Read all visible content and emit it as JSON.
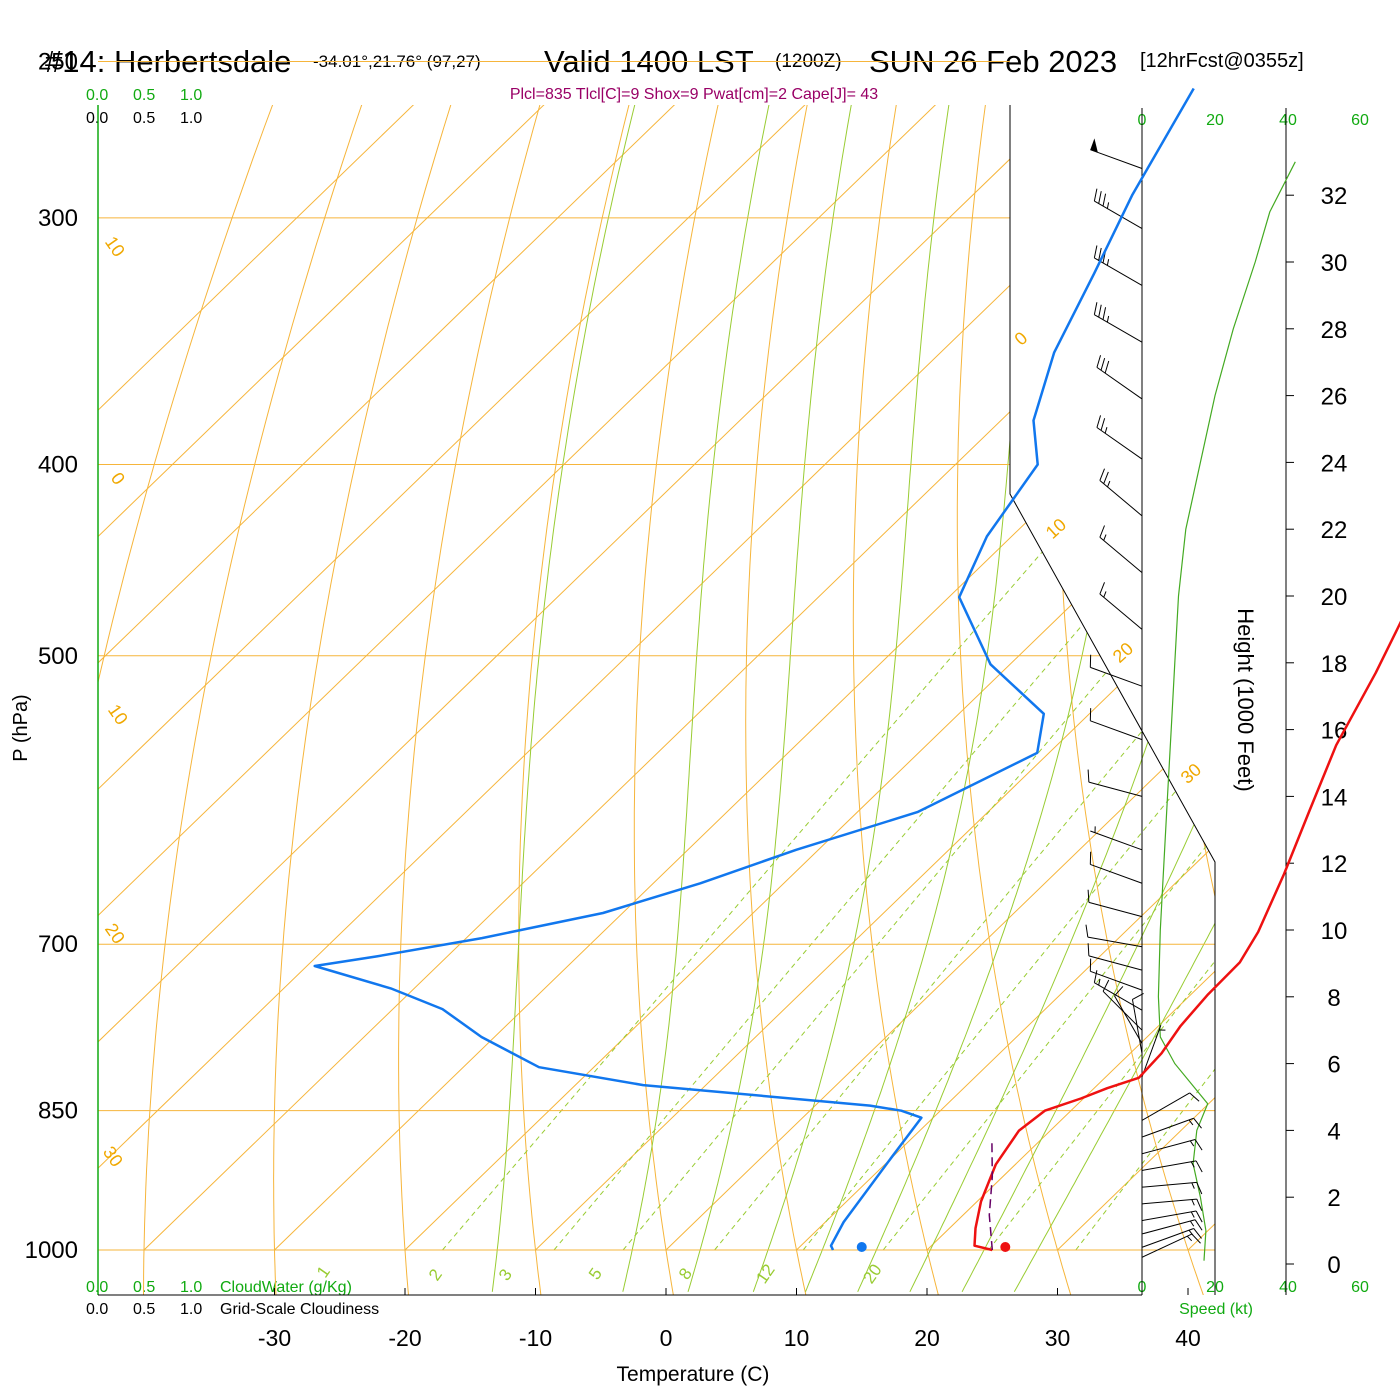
{
  "header": {
    "station": "#14: Herbertsdale",
    "coords": "-34.01°,21.76° (97,27)",
    "valid": "Valid 1400 LST",
    "utc": "(1200Z)",
    "date": "SUN 26 Feb 2023",
    "forecast": "[12hrFcst@0355z]",
    "indices": "Plcl=835 Tlcl[C]=9 Shox=9 Pwat[cm]=2 Cape[J]= 43"
  },
  "scales": {
    "cloudwater_ticks": [
      "0.0",
      "0.5",
      "1.0"
    ],
    "cloudiness_ticks": [
      "0.0",
      "0.5",
      "1.0"
    ],
    "cloudwater_label": "CloudWater (g/Kg)",
    "cloudiness_label": "Grid-Scale Cloudiness",
    "speed_ticks": [
      "0",
      "20",
      "40",
      "60"
    ],
    "speed_label": "Speed (kt)"
  },
  "chart_data": {
    "type": "line",
    "title": "Skew-T log-P sounding",
    "xlabel": "Temperature (C)",
    "ylabel": "P (hPa)",
    "y2label": "Height (1000 Feet)",
    "x_ticks": [
      -30,
      -20,
      -10,
      0,
      10,
      20,
      30,
      40
    ],
    "p_ticks": [
      1000,
      850,
      700,
      500,
      400,
      300,
      250
    ],
    "height_ticks": [
      0,
      2,
      4,
      6,
      8,
      10,
      12,
      14,
      16,
      18,
      20,
      22,
      24,
      26,
      28,
      30,
      32
    ],
    "xlim": [
      -34,
      45
    ],
    "plim": [
      1000,
      250
    ],
    "dry_adiabat_labels": [
      "-30",
      "-20",
      "-10",
      "0",
      "10",
      "20",
      "30"
    ],
    "isotherm_labels": [
      "10",
      "0",
      "-10",
      "-20",
      "-30"
    ],
    "mixing_ratio_labels": [
      "1",
      "2",
      "3",
      "5",
      "8",
      "12",
      "20"
    ],
    "series": [
      {
        "name": "Temperature",
        "color": "#ee1111",
        "points": [
          [
            25.0,
            1000
          ],
          [
            23.3,
            995
          ],
          [
            22.0,
            975
          ],
          [
            20.3,
            945
          ],
          [
            18.5,
            905
          ],
          [
            17.6,
            870
          ],
          [
            18.0,
            850
          ],
          [
            19.8,
            838
          ],
          [
            21.0,
            828
          ],
          [
            22.6,
            818
          ],
          [
            22.4,
            795
          ],
          [
            21.7,
            770
          ],
          [
            21.3,
            742
          ],
          [
            21.2,
            715
          ],
          [
            20.2,
            690
          ],
          [
            17.6,
            645
          ],
          [
            14.6,
            600
          ],
          [
            11.4,
            555
          ],
          [
            8.7,
            510
          ],
          [
            5.8,
            470
          ],
          [
            2.8,
            433
          ],
          [
            -1.5,
            395
          ],
          [
            -5.3,
            364
          ],
          [
            -9.3,
            338
          ],
          [
            -13.3,
            314
          ],
          [
            -18.8,
            290
          ],
          [
            -24.7,
            268
          ],
          [
            -31.0,
            255
          ]
        ]
      },
      {
        "name": "Dewpoint",
        "color": "#1177ee",
        "points": [
          [
            12.8,
            1000
          ],
          [
            12.3,
            995
          ],
          [
            11.4,
            968
          ],
          [
            10.0,
            900
          ],
          [
            9.1,
            857
          ],
          [
            7.0,
            850
          ],
          [
            4.2,
            845
          ],
          [
            -14.8,
            825
          ],
          [
            -24.2,
            808
          ],
          [
            -31.0,
            780
          ],
          [
            -36.2,
            755
          ],
          [
            -41.8,
            737
          ],
          [
            -49.4,
            718
          ],
          [
            -45.4,
            710
          ],
          [
            -38.8,
            695
          ],
          [
            -31.5,
            675
          ],
          [
            -26.4,
            652
          ],
          [
            -21.7,
            627
          ],
          [
            -15.4,
            600
          ],
          [
            -10.9,
            560
          ],
          [
            -13.5,
            535
          ],
          [
            -21.5,
            505
          ],
          [
            -29.2,
            467
          ],
          [
            -31.9,
            435
          ],
          [
            -33.7,
            400
          ],
          [
            -37.5,
            380
          ],
          [
            -41.3,
            351
          ],
          [
            -44.5,
            320
          ],
          [
            -47.8,
            292
          ],
          [
            -51.5,
            258
          ]
        ]
      },
      {
        "name": "Parcel",
        "color": "#660066",
        "points": [
          [
            25.0,
            1000
          ],
          [
            22.0,
            960
          ],
          [
            19.2,
            918
          ],
          [
            16.3,
            880
          ]
        ]
      }
    ],
    "surface_markers": [
      {
        "name": "surface temperature",
        "x": 26,
        "p": 1000,
        "color": "#ee1111"
      },
      {
        "name": "surface dewpoint",
        "x": 15,
        "p": 1000,
        "color": "#1177ee"
      }
    ],
    "wind_speed_profile": [
      [
        17,
        0.1
      ],
      [
        17.5,
        1
      ],
      [
        16,
        2
      ],
      [
        14,
        3
      ],
      [
        15,
        4
      ],
      [
        18,
        4.8
      ],
      [
        9,
        6
      ],
      [
        5,
        6.8
      ],
      [
        4.5,
        8
      ],
      [
        5,
        10
      ],
      [
        6,
        12
      ],
      [
        7,
        14
      ],
      [
        8,
        16
      ],
      [
        9,
        18
      ],
      [
        10,
        20
      ],
      [
        12,
        22
      ],
      [
        16,
        24
      ],
      [
        20,
        26
      ],
      [
        25,
        28
      ],
      [
        31,
        30
      ],
      [
        35,
        31.5
      ],
      [
        42,
        33
      ]
    ],
    "wind_barbs": [
      {
        "h": 32.8,
        "dir": 290,
        "kt": 50
      },
      {
        "h": 31.0,
        "dir": 300,
        "kt": 35
      },
      {
        "h": 29.3,
        "dir": 300,
        "kt": 35
      },
      {
        "h": 27.6,
        "dir": 300,
        "kt": 35
      },
      {
        "h": 25.9,
        "dir": 305,
        "kt": 30
      },
      {
        "h": 24.1,
        "dir": 305,
        "kt": 25
      },
      {
        "h": 22.4,
        "dir": 310,
        "kt": 25
      },
      {
        "h": 20.7,
        "dir": 310,
        "kt": 15
      },
      {
        "h": 19.0,
        "dir": 310,
        "kt": 15
      },
      {
        "h": 17.3,
        "dir": 290,
        "kt": 10
      },
      {
        "h": 15.7,
        "dir": 290,
        "kt": 10
      },
      {
        "h": 14.0,
        "dir": 285,
        "kt": 10
      },
      {
        "h": 12.4,
        "dir": 290,
        "kt": 5
      },
      {
        "h": 11.4,
        "dir": 290,
        "kt": 10
      },
      {
        "h": 10.4,
        "dir": 285,
        "kt": 10
      },
      {
        "h": 9.5,
        "dir": 280,
        "kt": 10
      },
      {
        "h": 8.8,
        "dir": 285,
        "kt": 10
      },
      {
        "h": 8.2,
        "dir": 290,
        "kt": 10
      },
      {
        "h": 7.6,
        "dir": 300,
        "kt": 15
      },
      {
        "h": 7.0,
        "dir": 315,
        "kt": 10
      },
      {
        "h": 6.6,
        "dir": 330,
        "kt": 10
      },
      {
        "h": 6.3,
        "dir": 350,
        "kt": 10
      },
      {
        "h": 5.6,
        "dir": 20,
        "kt": 5
      },
      {
        "h": 4.3,
        "dir": 60,
        "kt": 10
      },
      {
        "h": 3.8,
        "dir": 70,
        "kt": 15
      },
      {
        "h": 3.3,
        "dir": 75,
        "kt": 15
      },
      {
        "h": 2.8,
        "dir": 80,
        "kt": 15
      },
      {
        "h": 2.3,
        "dir": 85,
        "kt": 15
      },
      {
        "h": 1.8,
        "dir": 85,
        "kt": 15
      },
      {
        "h": 1.3,
        "dir": 80,
        "kt": 15
      },
      {
        "h": 0.9,
        "dir": 75,
        "kt": 15
      },
      {
        "h": 0.5,
        "dir": 70,
        "kt": 15
      },
      {
        "h": 0.2,
        "dir": 65,
        "kt": 15
      }
    ],
    "grid": true,
    "legend": "none"
  }
}
